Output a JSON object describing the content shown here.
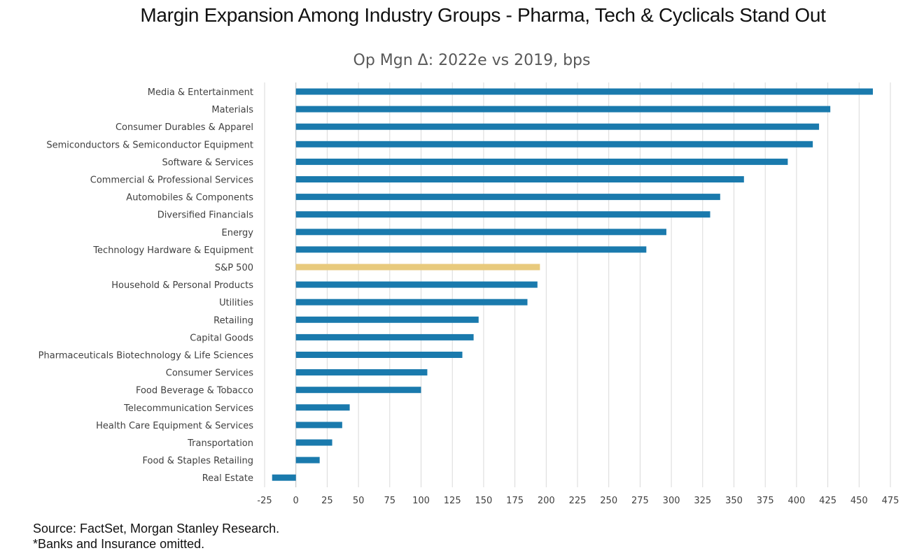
{
  "title": "Margin Expansion Among Industry Groups - Pharma, Tech & Cyclicals Stand Out",
  "footnotes": {
    "source": "Source: FactSet, Morgan Stanley Research.",
    "note": "*Banks and Insurance omitted."
  },
  "colors": {
    "bar": "#1a7aad",
    "highlight": "#e8ca7d",
    "grid": "#d9d9d9",
    "text": "#404040",
    "subtitle": "#595959"
  },
  "chart_data": {
    "type": "bar",
    "orientation": "horizontal",
    "title": "Op Mgn Δ: 2022e vs 2019, bps",
    "categories": [
      "Media & Entertainment",
      "Materials",
      "Consumer Durables & Apparel",
      "Semiconductors & Semiconductor Equipment",
      "Software & Services",
      "Commercial & Professional Services",
      "Automobiles & Components",
      "Diversified Financials",
      "Energy",
      "Technology Hardware & Equipment",
      "S&P 500",
      "Household & Personal Products",
      "Utilities",
      "Retailing",
      "Capital Goods",
      "Pharmaceuticals Biotechnology & Life Sciences",
      "Consumer Services",
      "Food Beverage & Tobacco",
      "Telecommunication Services",
      "Health Care Equipment & Services",
      "Transportation",
      "Food & Staples Retailing",
      "Real Estate"
    ],
    "values": [
      461,
      427,
      418,
      413,
      393,
      358,
      339,
      331,
      296,
      280,
      195,
      193,
      185,
      146,
      142,
      133,
      105,
      100,
      43,
      37,
      29,
      19,
      -19
    ],
    "highlight": "S&P 500",
    "xlim": [
      -25,
      475
    ],
    "xticks": [
      -25,
      0,
      25,
      50,
      75,
      100,
      125,
      150,
      175,
      200,
      225,
      250,
      275,
      300,
      325,
      350,
      375,
      400,
      425,
      450,
      475
    ],
    "grid": "vertical",
    "legend": "none"
  }
}
